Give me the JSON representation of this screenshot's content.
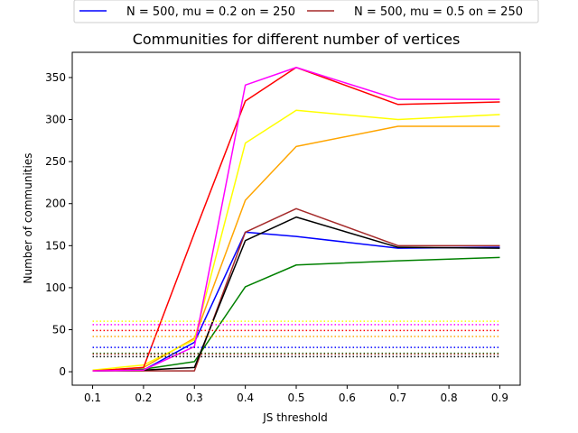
{
  "chart_data": {
    "type": "line",
    "title": "Communities for different number of vertices",
    "xlabel": "JS threshold",
    "ylabel": "Number of communities",
    "xlim": [
      0.06,
      0.94
    ],
    "ylim": [
      -16,
      380
    ],
    "xticks": [
      0.1,
      0.2,
      0.3,
      0.4,
      0.5,
      0.6,
      0.7,
      0.8,
      0.9
    ],
    "xtick_labels": [
      "0.1",
      "0.2",
      "0.3",
      "0.4",
      "0.5",
      "0.6",
      "0.7",
      "0.8",
      "0.9"
    ],
    "yticks": [
      0,
      50,
      100,
      150,
      200,
      250,
      300,
      350
    ],
    "ytick_labels": [
      "0",
      "50",
      "100",
      "150",
      "200",
      "250",
      "300",
      "350"
    ],
    "grid": false,
    "legend_placement": "above plot, two columns",
    "x": [
      0.1,
      0.2,
      0.3,
      0.4,
      0.5,
      0.7,
      0.9
    ],
    "series": [
      {
        "name": "N = 500, mu = 0.2 on = 250",
        "color": "#0000ff",
        "style": "solid",
        "values": [
          2,
          2,
          35,
          166,
          161,
          147,
          148
        ]
      },
      {
        "name": "N = 500, mu = 0.5 on = 250",
        "color": "#a52a2a",
        "style": "solid",
        "values": [
          1,
          1,
          1,
          166,
          194,
          150,
          150
        ]
      },
      {
        "color": "#008000",
        "style": "solid",
        "values": [
          1,
          3,
          12,
          101,
          127,
          132,
          136
        ]
      },
      {
        "color": "#000000",
        "style": "solid",
        "values": [
          1,
          2,
          5,
          156,
          184,
          148,
          147
        ]
      },
      {
        "color": "#ffa500",
        "style": "solid",
        "values": [
          1,
          5,
          40,
          204,
          268,
          292,
          292
        ]
      },
      {
        "color": "#ffff00",
        "style": "solid",
        "values": [
          2,
          8,
          38,
          272,
          311,
          300,
          306
        ]
      },
      {
        "color": "#ff0000",
        "style": "solid",
        "values": [
          1,
          5,
          165,
          322,
          362,
          318,
          321
        ]
      },
      {
        "color": "#ff00ff",
        "style": "solid",
        "values": [
          1,
          2,
          30,
          341,
          362,
          324,
          324
        ]
      },
      {
        "color": "#ffff00",
        "style": "dotted",
        "values": [
          60,
          60,
          60,
          60,
          60,
          60,
          60
        ]
      },
      {
        "color": "#ff00ff",
        "style": "dotted",
        "values": [
          56,
          56,
          56,
          56,
          56,
          56,
          56
        ]
      },
      {
        "color": "#ff0000",
        "style": "dotted",
        "values": [
          49,
          49,
          49,
          49,
          49,
          49,
          49
        ]
      },
      {
        "color": "#ffa500",
        "style": "dotted",
        "values": [
          42,
          42,
          42,
          42,
          42,
          42,
          42
        ]
      },
      {
        "color": "#0000ff",
        "style": "dotted",
        "values": [
          29,
          29,
          29,
          29,
          29,
          29,
          29
        ]
      },
      {
        "color": "#008000",
        "style": "dotted",
        "values": [
          22,
          22,
          22,
          22,
          22,
          22,
          22
        ]
      },
      {
        "color": "#a52a2a",
        "style": "dotted",
        "values": [
          21,
          21,
          21,
          21,
          21,
          21,
          21
        ]
      },
      {
        "color": "#000000",
        "style": "dotted",
        "values": [
          18,
          18,
          18,
          18,
          18,
          18,
          18
        ]
      }
    ]
  }
}
